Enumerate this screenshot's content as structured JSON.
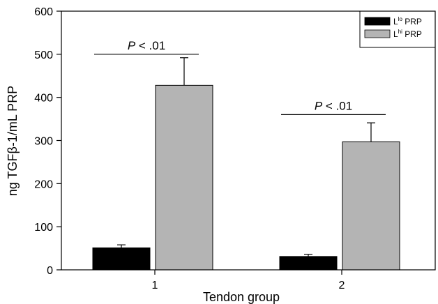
{
  "chart_data": {
    "type": "bar",
    "title": "",
    "xlabel": "Tendon group",
    "ylabel": "ng TGFβ-1/mL PRP",
    "categories": [
      "1",
      "2"
    ],
    "ylim": [
      0,
      600
    ],
    "yticks": [
      0,
      100,
      200,
      300,
      400,
      500,
      600
    ],
    "grid": false,
    "legend_position": "top-right",
    "series": [
      {
        "name_base": "L",
        "name_sup": "lo",
        "name_rest": " PRP",
        "color": "#000000",
        "values": [
          51,
          31
        ],
        "errors": [
          7,
          5
        ]
      },
      {
        "name_base": "L",
        "name_sup": "hi",
        "name_rest": " PRP",
        "color": "#b4b4b4",
        "values": [
          428,
          297
        ],
        "errors": [
          64,
          44
        ]
      }
    ],
    "annotations": [
      {
        "category": "1",
        "level": 500,
        "prefix": "P",
        "text": " < .01"
      },
      {
        "category": "2",
        "level": 360,
        "prefix": "P",
        "text": " < .01"
      }
    ]
  }
}
